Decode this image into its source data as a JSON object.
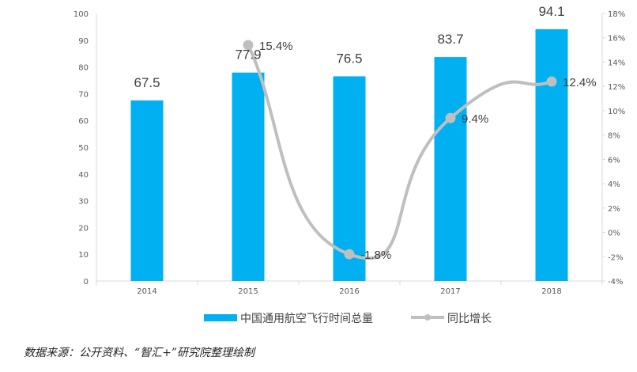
{
  "chart_data": {
    "type": "bar",
    "categories": [
      "2014",
      "2015",
      "2016",
      "2017",
      "2018"
    ],
    "series": [
      {
        "name": "中国通用航空飞行时间总量",
        "type": "bar",
        "axis": "left",
        "values": [
          67.5,
          77.9,
          76.5,
          83.7,
          94.1
        ],
        "labels": [
          "67.5",
          "77.9",
          "76.5",
          "83.7",
          "94.1"
        ],
        "color": "#00b0f0"
      },
      {
        "name": "同比增长",
        "type": "line",
        "axis": "right",
        "values": [
          15.4,
          -1.8,
          9.4,
          12.4
        ],
        "x": [
          "2015",
          "2016",
          "2017",
          "2018"
        ],
        "labels": [
          "15.4%",
          "-1.8%",
          "9.4%",
          "12.4%"
        ],
        "color": "#bfbfbf"
      }
    ],
    "left_axis": {
      "ylim": [
        0,
        100
      ],
      "ticks": [
        "0",
        "10",
        "20",
        "30",
        "40",
        "50",
        "60",
        "70",
        "80",
        "90",
        "100"
      ]
    },
    "right_axis": {
      "ylim": [
        -4,
        18
      ],
      "ticks": [
        "-4%",
        "-2%",
        "0%",
        "2%",
        "4%",
        "6%",
        "8%",
        "10%",
        "12%",
        "14%",
        "16%",
        "18%"
      ]
    },
    "legend_position": "bottom",
    "grid": false
  },
  "source_note": "数据来源：公开资料、“智汇+”研究院整理绘制"
}
